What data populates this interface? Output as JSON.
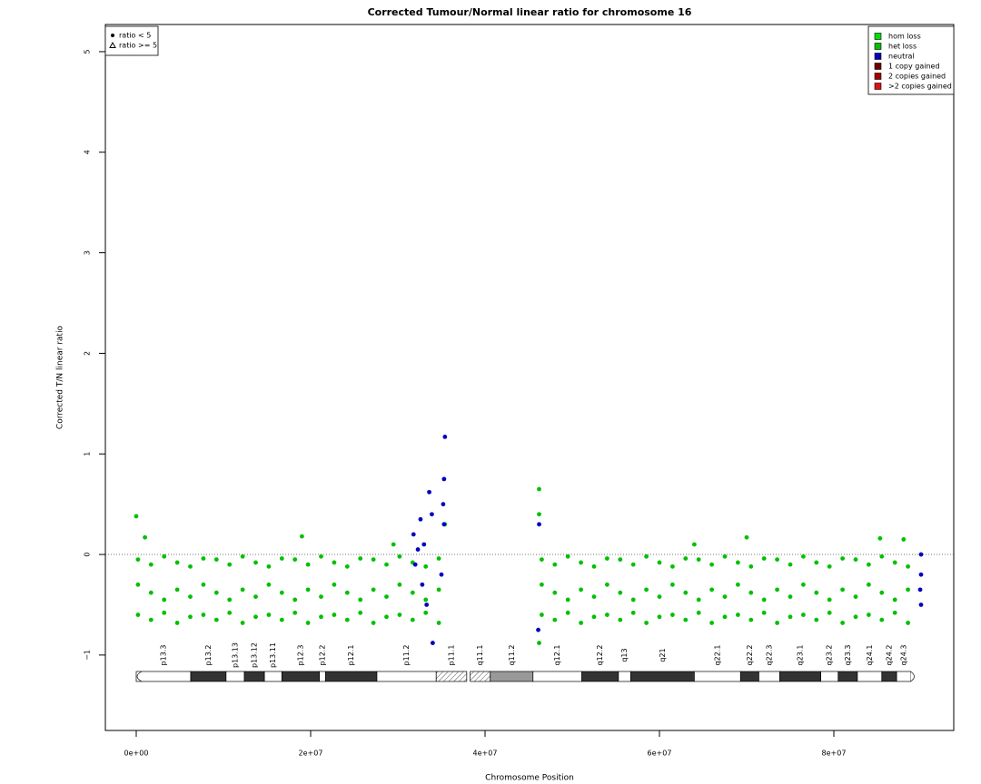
{
  "chart_data": {
    "type": "scatter",
    "title": "Corrected Tumour/Normal linear ratio for chromosome  16",
    "xlabel": "Chromosome Position",
    "ylabel": "Corrected T/N linear ratio",
    "xlim": [
      -3540000,
      93750000
    ],
    "ylim": [
      -1.75,
      5.27
    ],
    "xticks": [
      {
        "value": 0,
        "label": "0e+00"
      },
      {
        "value": 20000000,
        "label": "2e+07"
      },
      {
        "value": 40000000,
        "label": "4e+07"
      },
      {
        "value": 60000000,
        "label": "6e+07"
      },
      {
        "value": 80000000,
        "label": "8e+07"
      }
    ],
    "yticks": [
      {
        "value": -1,
        "label": "−1"
      },
      0,
      1,
      2,
      3,
      4,
      5
    ],
    "reference_line": 0,
    "shape_legend": [
      {
        "label": "ratio < 5",
        "shape": "circle"
      },
      {
        "label": "ratio >= 5",
        "shape": "triangle"
      }
    ],
    "series": [
      {
        "name": "hom loss",
        "color": "#00e000",
        "x": [],
        "values": []
      },
      {
        "name": "het loss",
        "color": "#00c000",
        "x": [
          200000,
          200000,
          200000,
          1700000,
          1700000,
          1700000,
          3200000,
          3200000,
          3200000,
          4700000,
          4700000,
          4700000,
          6200000,
          6200000,
          6200000,
          7700000,
          7700000,
          7700000,
          9200000,
          9200000,
          9200000,
          10700000,
          10700000,
          10700000,
          12200000,
          12200000,
          12200000,
          13700000,
          13700000,
          13700000,
          15200000,
          15200000,
          15200000,
          16700000,
          16700000,
          16700000,
          18200000,
          18200000,
          18200000,
          19700000,
          19700000,
          19700000,
          21200000,
          21200000,
          21200000,
          22700000,
          22700000,
          22700000,
          24200000,
          24200000,
          24200000,
          25700000,
          25700000,
          25700000,
          27200000,
          27200000,
          27200000,
          28700000,
          28700000,
          28700000,
          30200000,
          30200000,
          30200000,
          31700000,
          31700000,
          31700000,
          33200000,
          33200000,
          33200000,
          34700000,
          34700000,
          34700000,
          46500000,
          46500000,
          46500000,
          48000000,
          48000000,
          48000000,
          49500000,
          49500000,
          49500000,
          51000000,
          51000000,
          51000000,
          52500000,
          52500000,
          52500000,
          54000000,
          54000000,
          54000000,
          55500000,
          55500000,
          55500000,
          57000000,
          57000000,
          57000000,
          58500000,
          58500000,
          58500000,
          60000000,
          60000000,
          60000000,
          61500000,
          61500000,
          61500000,
          63000000,
          63000000,
          63000000,
          64500000,
          64500000,
          64500000,
          66000000,
          66000000,
          66000000,
          67500000,
          67500000,
          67500000,
          69000000,
          69000000,
          69000000,
          70500000,
          70500000,
          70500000,
          72000000,
          72000000,
          72000000,
          73500000,
          73500000,
          73500000,
          75000000,
          75000000,
          75000000,
          76500000,
          76500000,
          76500000,
          78000000,
          78000000,
          78000000,
          79500000,
          79500000,
          79500000,
          81000000,
          81000000,
          81000000,
          82500000,
          82500000,
          82500000,
          84000000,
          84000000,
          84000000,
          85500000,
          85500000,
          85500000,
          87000000,
          87000000,
          87000000,
          88500000,
          88500000,
          88500000,
          0,
          1000000,
          19000000,
          29500000,
          35400000,
          46200000,
          46200000,
          46200000,
          70000000,
          85300000,
          88000000,
          64000000
        ],
        "values": [
          -0.05,
          -0.3,
          -0.6,
          -0.1,
          -0.38,
          -0.65,
          -0.02,
          -0.45,
          -0.58,
          -0.08,
          -0.35,
          -0.68,
          -0.12,
          -0.42,
          -0.62,
          -0.04,
          -0.3,
          -0.6,
          -0.05,
          -0.38,
          -0.65,
          -0.1,
          -0.45,
          -0.58,
          -0.02,
          -0.35,
          -0.68,
          -0.08,
          -0.42,
          -0.62,
          -0.12,
          -0.3,
          -0.6,
          -0.04,
          -0.38,
          -0.65,
          -0.05,
          -0.45,
          -0.58,
          -0.1,
          -0.35,
          -0.68,
          -0.02,
          -0.42,
          -0.62,
          -0.08,
          -0.3,
          -0.6,
          -0.12,
          -0.38,
          -0.65,
          -0.04,
          -0.45,
          -0.58,
          -0.05,
          -0.35,
          -0.68,
          -0.1,
          -0.42,
          -0.62,
          -0.02,
          -0.3,
          -0.6,
          -0.08,
          -0.38,
          -0.65,
          -0.12,
          -0.45,
          -0.58,
          -0.04,
          -0.35,
          -0.68,
          -0.05,
          -0.3,
          -0.6,
          -0.1,
          -0.38,
          -0.65,
          -0.02,
          -0.45,
          -0.58,
          -0.08,
          -0.35,
          -0.68,
          -0.12,
          -0.42,
          -0.62,
          -0.04,
          -0.3,
          -0.6,
          -0.05,
          -0.38,
          -0.65,
          -0.1,
          -0.45,
          -0.58,
          -0.02,
          -0.35,
          -0.68,
          -0.08,
          -0.42,
          -0.62,
          -0.12,
          -0.3,
          -0.6,
          -0.04,
          -0.38,
          -0.65,
          -0.05,
          -0.45,
          -0.58,
          -0.1,
          -0.35,
          -0.68,
          -0.02,
          -0.42,
          -0.62,
          -0.08,
          -0.3,
          -0.6,
          -0.12,
          -0.38,
          -0.65,
          -0.04,
          -0.45,
          -0.58,
          -0.05,
          -0.35,
          -0.68,
          -0.1,
          -0.42,
          -0.62,
          -0.02,
          -0.3,
          -0.6,
          -0.08,
          -0.38,
          -0.65,
          -0.12,
          -0.45,
          -0.58,
          -0.04,
          -0.35,
          -0.68,
          -0.05,
          -0.42,
          -0.62,
          -0.1,
          -0.3,
          -0.6,
          -0.02,
          -0.38,
          -0.65,
          -0.08,
          -0.45,
          -0.58,
          -0.12,
          -0.35,
          -0.68,
          0.38,
          0.17,
          0.18,
          0.1,
          0.3,
          0.65,
          0.4,
          -0.88,
          0.17,
          0.16,
          0.15,
          0.1
        ]
      },
      {
        "name": "neutral",
        "color": "#0000c0",
        "x": [
          31800000,
          32000000,
          32300000,
          32600000,
          32800000,
          33000000,
          33300000,
          33600000,
          33900000,
          34000000,
          35000000,
          35200000,
          35300000,
          35400000,
          35300000,
          46100000,
          46200000,
          90000000,
          90000000,
          90000000,
          89900000
        ],
        "values": [
          0.2,
          -0.1,
          0.05,
          0.35,
          -0.3,
          0.1,
          -0.5,
          0.62,
          0.4,
          -0.88,
          -0.2,
          0.5,
          0.75,
          1.17,
          0.3,
          -0.75,
          0.3,
          0.0,
          -0.2,
          -0.5,
          -0.35
        ]
      },
      {
        "name": "1 copy gained",
        "color": "#700000",
        "x": [],
        "values": []
      },
      {
        "name": "2 copies gained",
        "color": "#a00000",
        "x": [],
        "values": []
      },
      {
        "name": ">2 copies gained",
        "color": "#e01010",
        "x": [],
        "values": []
      }
    ],
    "ideogram": [
      {
        "name": "p13.3",
        "start": 0,
        "end": 6250000,
        "color": "#ffffff"
      },
      {
        "name": "p13.2",
        "start": 6250000,
        "end": 10300000,
        "color": "#333333"
      },
      {
        "name": "p13.13",
        "start": 10300000,
        "end": 12400000,
        "color": "#ffffff"
      },
      {
        "name": "p13.12",
        "start": 12400000,
        "end": 14700000,
        "color": "#333333"
      },
      {
        "name": "p13.11",
        "start": 14700000,
        "end": 16700000,
        "color": "#ffffff"
      },
      {
        "name": "p12.3",
        "start": 16700000,
        "end": 21000000,
        "color": "#333333"
      },
      {
        "name": "p12.2",
        "start": 21000000,
        "end": 21700000,
        "color": "#ffffff"
      },
      {
        "name": "p12.1",
        "start": 21700000,
        "end": 27600000,
        "color": "#333333"
      },
      {
        "name": "p11.2",
        "start": 27600000,
        "end": 34400000,
        "color": "#ffffff"
      },
      {
        "name": "p11.1",
        "start": 34400000,
        "end": 37900000,
        "color": "hatch"
      },
      {
        "name": "q11.1",
        "start": 38300000,
        "end": 40600000,
        "color": "hatch"
      },
      {
        "name": "q11.2",
        "start": 40600000,
        "end": 45500000,
        "color": "#999999"
      },
      {
        "name": "q12.1",
        "start": 45500000,
        "end": 51100000,
        "color": "#ffffff"
      },
      {
        "name": "q12.2",
        "start": 51100000,
        "end": 55300000,
        "color": "#333333"
      },
      {
        "name": "q13",
        "start": 55300000,
        "end": 56700000,
        "color": "#ffffff"
      },
      {
        "name": "q21",
        "start": 56700000,
        "end": 64000000,
        "color": "#333333"
      },
      {
        "name": "q22.1",
        "start": 64000000,
        "end": 69300000,
        "color": "#ffffff"
      },
      {
        "name": "q22.2",
        "start": 69300000,
        "end": 71400000,
        "color": "#333333"
      },
      {
        "name": "q22.3",
        "start": 71400000,
        "end": 73800000,
        "color": "#ffffff"
      },
      {
        "name": "q23.1",
        "start": 73800000,
        "end": 78500000,
        "color": "#333333"
      },
      {
        "name": "q23.2",
        "start": 78500000,
        "end": 80500000,
        "color": "#ffffff"
      },
      {
        "name": "q23.3",
        "start": 80500000,
        "end": 82700000,
        "color": "#333333"
      },
      {
        "name": "q24.1",
        "start": 82700000,
        "end": 85500000,
        "color": "#ffffff"
      },
      {
        "name": "q24.2",
        "start": 85500000,
        "end": 87200000,
        "color": "#333333"
      },
      {
        "name": "q24.3",
        "start": 87200000,
        "end": 88800000,
        "color": "#ffffff"
      }
    ]
  }
}
